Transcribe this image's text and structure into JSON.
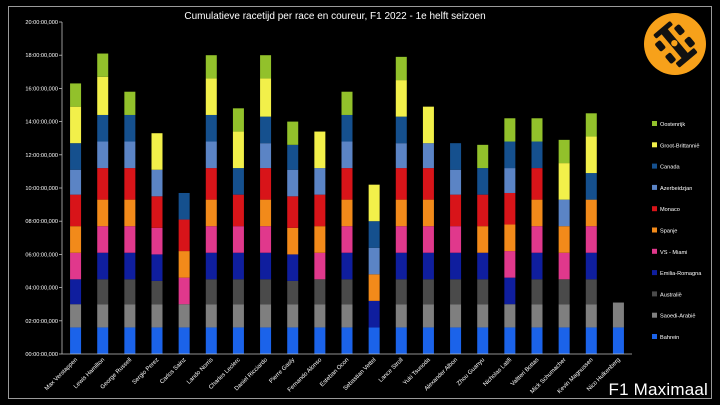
{
  "brand": "F1 Maximaal",
  "chart_data": {
    "type": "bar",
    "stacked": true,
    "title": "Cumulatieve racetijd per race en coureur, F1 2022 - 1e helft seizoen",
    "xlabel": "",
    "ylabel": "",
    "ylim_hours": [
      0,
      20
    ],
    "y_ticks": [
      "00:00:00,000",
      "02:00:00,000",
      "04:00:00,000",
      "06:00:00,000",
      "08:00:00,000",
      "10:00:00,000",
      "12:00:00,000",
      "14:00:00,000",
      "16:00:00,000",
      "18:00:00,000",
      "20:00:00,000"
    ],
    "grid": false,
    "legend_position": "right",
    "value_unit": "hours",
    "categories": [
      "Max Verstappen",
      "Lewis Hamilton",
      "George Russell",
      "Sergio Perez",
      "Carlos Sainz",
      "Lando Norris",
      "Charles Leclerc",
      "Daniel Ricciardo",
      "Pierre Gasly",
      "Fernando Alonso",
      "Esteban Ocon",
      "Sebastian Vettel",
      "Lance Stroll",
      "Yuki Tsunoda",
      "Alexander Albon",
      "Zhou Guanyu",
      "Nicholas Latifi",
      "Valtteri Bottas",
      "Mick Schumacher",
      "Kevin Magnussen",
      "Nico Hulkenberg"
    ],
    "series": [
      {
        "name": "Bahrein",
        "color": "#1b63ea",
        "values": [
          1.6,
          1.6,
          1.6,
          1.6,
          1.6,
          1.6,
          1.6,
          1.6,
          1.6,
          1.6,
          1.6,
          1.6,
          1.6,
          1.6,
          1.6,
          1.6,
          1.6,
          1.6,
          1.6,
          1.6,
          1.6
        ]
      },
      {
        "name": "Saoedi-Arabië",
        "color": "#7f7f7f",
        "values": [
          1.4,
          1.4,
          1.4,
          1.4,
          1.4,
          1.4,
          1.4,
          1.4,
          1.4,
          1.4,
          1.4,
          0,
          1.4,
          1.4,
          1.4,
          1.4,
          1.4,
          1.4,
          1.4,
          1.4,
          1.5
        ]
      },
      {
        "name": "Australië",
        "color": "#4a4a4a",
        "values": [
          0,
          1.5,
          1.5,
          1.4,
          0,
          1.5,
          1.5,
          1.5,
          1.4,
          1.5,
          1.5,
          0,
          1.5,
          1.5,
          1.5,
          1.5,
          0,
          1.5,
          1.5,
          1.5,
          0
        ]
      },
      {
        "name": "Emilia-Romagna",
        "color": "#0f1e9e",
        "values": [
          1.5,
          1.6,
          1.6,
          1.6,
          0,
          1.6,
          1.6,
          1.6,
          1.6,
          0,
          1.6,
          1.6,
          1.6,
          1.6,
          1.6,
          1.6,
          1.6,
          1.6,
          0,
          1.6,
          0
        ]
      },
      {
        "name": "VS - Miami",
        "color": "#e0388c",
        "values": [
          1.6,
          1.6,
          1.6,
          1.6,
          1.6,
          1.6,
          1.6,
          1.6,
          0,
          1.6,
          1.6,
          0,
          1.6,
          1.6,
          1.6,
          0,
          1.6,
          1.6,
          1.6,
          1.6,
          0
        ]
      },
      {
        "name": "Spanje",
        "color": "#f28a1a",
        "values": [
          1.6,
          1.6,
          1.6,
          0,
          1.6,
          1.6,
          0,
          1.6,
          1.6,
          1.6,
          1.6,
          1.6,
          1.6,
          1.6,
          0,
          1.6,
          1.6,
          1.6,
          1.6,
          1.6,
          0
        ]
      },
      {
        "name": "Monaco",
        "color": "#d81419",
        "values": [
          1.9,
          1.9,
          1.9,
          1.9,
          1.9,
          1.9,
          1.9,
          1.9,
          1.9,
          1.9,
          1.9,
          0,
          1.9,
          1.9,
          1.9,
          1.9,
          1.9,
          1.9,
          0,
          0,
          0
        ]
      },
      {
        "name": "Azerbeidzjan",
        "color": "#5b84c5",
        "values": [
          1.5,
          1.6,
          1.6,
          1.6,
          0,
          1.6,
          0,
          1.5,
          1.6,
          1.6,
          1.6,
          1.6,
          1.5,
          1.5,
          1.5,
          0,
          1.5,
          0,
          1.6,
          0,
          0
        ]
      },
      {
        "name": "Canada",
        "color": "#15508e",
        "values": [
          1.6,
          1.6,
          1.6,
          0,
          1.6,
          1.6,
          1.6,
          1.6,
          1.5,
          0,
          1.6,
          1.6,
          1.6,
          0,
          1.6,
          1.6,
          1.6,
          1.6,
          0,
          1.6,
          0
        ]
      },
      {
        "name": "Groot-Brittannië",
        "color": "#f2f04a",
        "values": [
          2.2,
          2.3,
          0,
          2.2,
          0,
          2.2,
          2.2,
          2.3,
          0,
          2.2,
          0,
          2.2,
          2.2,
          2.2,
          0,
          0,
          0,
          0,
          2.2,
          2.2,
          0
        ]
      },
      {
        "name": "Oostenrijk",
        "color": "#92c12b",
        "values": [
          1.4,
          1.4,
          1.4,
          0,
          0,
          1.4,
          1.4,
          1.4,
          1.4,
          0,
          1.4,
          0,
          1.4,
          0,
          0,
          1.4,
          1.4,
          1.4,
          1.4,
          1.4,
          0
        ]
      }
    ]
  }
}
